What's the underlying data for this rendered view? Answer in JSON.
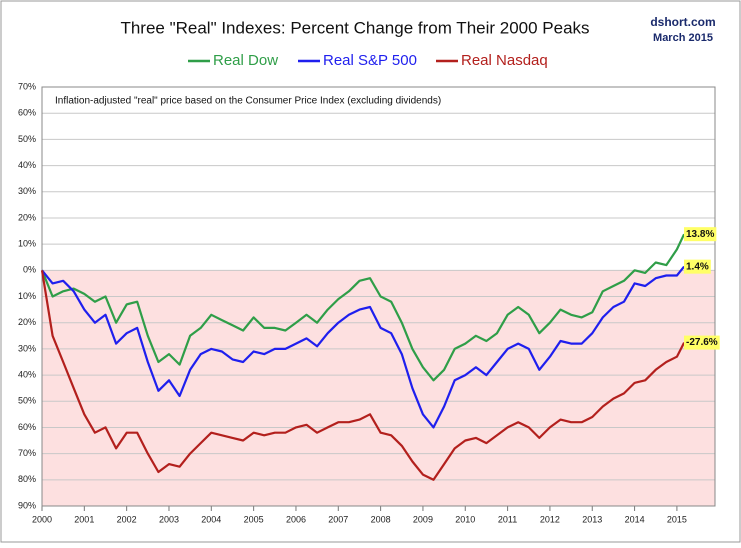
{
  "chart_data": {
    "type": "line",
    "title": "Three \"Real\" Indexes: Percent Change from Their 2000 Peaks",
    "source": "dshort.com",
    "date": "March 2015",
    "note": "Inflation-adjusted \"real\" price based on the Consumer Price Index (excluding dividends)",
    "x": [
      2000,
      2000.25,
      2000.5,
      2000.75,
      2001,
      2001.25,
      2001.5,
      2001.75,
      2002,
      2002.25,
      2002.5,
      2002.75,
      2003,
      2003.25,
      2003.5,
      2003.75,
      2004,
      2004.25,
      2004.5,
      2004.75,
      2005,
      2005.25,
      2005.5,
      2005.75,
      2006,
      2006.25,
      2006.5,
      2006.75,
      2007,
      2007.25,
      2007.5,
      2007.75,
      2008,
      2008.25,
      2008.5,
      2008.75,
      2009,
      2009.25,
      2009.5,
      2009.75,
      2010,
      2010.25,
      2010.5,
      2010.75,
      2011,
      2011.25,
      2011.5,
      2011.75,
      2012,
      2012.25,
      2012.5,
      2012.75,
      2013,
      2013.25,
      2013.5,
      2013.75,
      2014,
      2014.25,
      2014.5,
      2014.75,
      2015,
      2015.17
    ],
    "series": [
      {
        "name": "Real Dow",
        "color": "#2f9e48",
        "values": [
          0,
          -10,
          -8,
          -7,
          -9,
          -12,
          -10,
          -20,
          -13,
          -12,
          -25,
          -35,
          -32,
          -36,
          -25,
          -22,
          -17,
          -19,
          -21,
          -23,
          -18,
          -22,
          -22,
          -23,
          -20,
          -17,
          -20,
          -15,
          -11,
          -8,
          -4,
          -3,
          -10,
          -12,
          -20,
          -30,
          -37,
          -42,
          -38,
          -30,
          -28,
          -25,
          -27,
          -24,
          -17,
          -14,
          -17,
          -24,
          -20,
          -15,
          -17,
          -18,
          -16,
          -8,
          -6,
          -4,
          0,
          -1,
          3,
          2,
          8,
          13.8
        ]
      },
      {
        "name": "Real S&P 500",
        "color": "#1f1fee",
        "values": [
          0,
          -5,
          -4,
          -8,
          -15,
          -20,
          -17,
          -28,
          -24,
          -22,
          -35,
          -46,
          -42,
          -48,
          -38,
          -32,
          -30,
          -31,
          -34,
          -35,
          -31,
          -32,
          -30,
          -30,
          -28,
          -26,
          -29,
          -24,
          -20,
          -17,
          -15,
          -14,
          -22,
          -24,
          -32,
          -45,
          -55,
          -60,
          -52,
          -42,
          -40,
          -37,
          -40,
          -35,
          -30,
          -28,
          -30,
          -38,
          -33,
          -27,
          -28,
          -28,
          -24,
          -18,
          -14,
          -12,
          -5,
          -6,
          -3,
          -2,
          -2,
          1.4
        ]
      },
      {
        "name": "Real Nasdaq",
        "color": "#b3201d",
        "values": [
          0,
          -25,
          -35,
          -45,
          -55,
          -62,
          -60,
          -68,
          -62,
          -62,
          -70,
          -77,
          -74,
          -75,
          -70,
          -66,
          -62,
          -63,
          -64,
          -65,
          -62,
          -63,
          -62,
          -62,
          -60,
          -59,
          -62,
          -60,
          -58,
          -58,
          -57,
          -55,
          -62,
          -63,
          -67,
          -73,
          -78,
          -80,
          -74,
          -68,
          -65,
          -64,
          -66,
          -63,
          -60,
          -58,
          -60,
          -64,
          -60,
          -57,
          -58,
          -58,
          -56,
          -52,
          -49,
          -47,
          -43,
          -42,
          -38,
          -35,
          -33,
          -27.6
        ]
      }
    ],
    "annotations": [
      {
        "label": "13.8%",
        "y": 13.8
      },
      {
        "label": "1.4%",
        "y": 1.4
      },
      {
        "label": "-27.6%",
        "y": -27.6
      }
    ],
    "annotation_color": "#ffff66",
    "negative_shade": "#fde0e0",
    "xlim": [
      2000,
      2015.9
    ],
    "xticks": [
      2000,
      2001,
      2002,
      2003,
      2004,
      2005,
      2006,
      2007,
      2008,
      2009,
      2010,
      2011,
      2012,
      2013,
      2014,
      2015
    ],
    "ylim": [
      -90,
      70
    ],
    "yticks": [
      {
        "value": 70,
        "label": "70%"
      },
      {
        "value": 60,
        "label": "60%"
      },
      {
        "value": 50,
        "label": "50%"
      },
      {
        "value": 40,
        "label": "40%"
      },
      {
        "value": 30,
        "label": "30%"
      },
      {
        "value": 20,
        "label": "20%"
      },
      {
        "value": 10,
        "label": "10%"
      },
      {
        "value": 0,
        "label": "0%"
      },
      {
        "value": -10,
        "label": "10%"
      },
      {
        "value": -20,
        "label": "20%"
      },
      {
        "value": -30,
        "label": "30%"
      },
      {
        "value": -40,
        "label": "40%"
      },
      {
        "value": -50,
        "label": "50%"
      },
      {
        "value": -60,
        "label": "60%"
      },
      {
        "value": -70,
        "label": "70%"
      },
      {
        "value": -80,
        "label": "80%"
      },
      {
        "value": -90,
        "label": "90%"
      }
    ],
    "grid": true
  }
}
